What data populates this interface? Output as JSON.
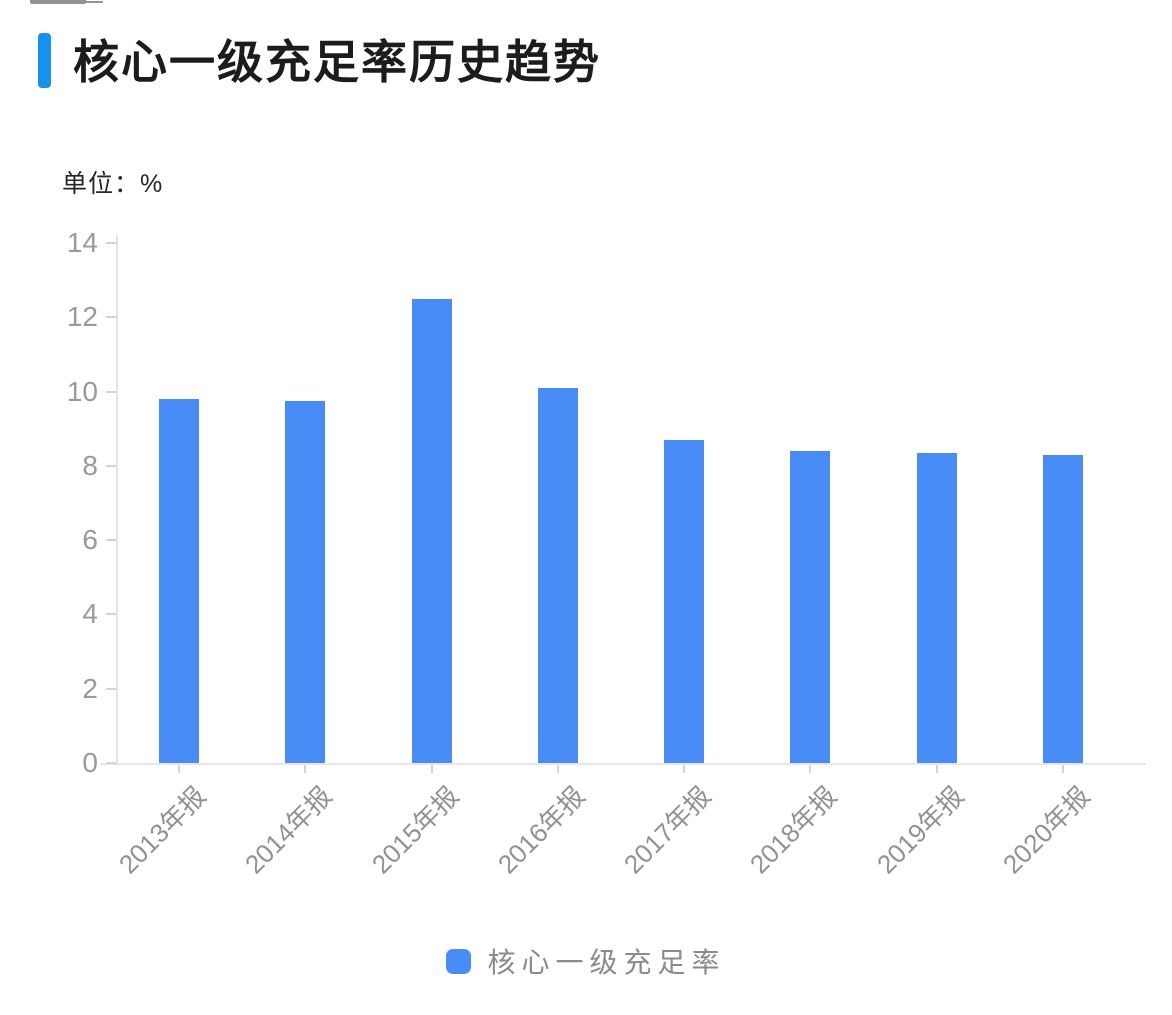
{
  "header": {
    "title": "核心一级充足率历史趋势"
  },
  "chart": {
    "unit_label": "单位：%"
  },
  "chart_data": {
    "type": "bar",
    "title": "核心一级充足率历史趋势",
    "unit": "%",
    "categories": [
      "2013年报",
      "2014年报",
      "2015年报",
      "2016年报",
      "2017年报",
      "2018年报",
      "2019年报",
      "2020年报"
    ],
    "series": [
      {
        "name": "核心一级充足率",
        "values": [
          9.8,
          9.75,
          12.5,
          10.1,
          8.7,
          8.4,
          8.35,
          8.3
        ]
      }
    ],
    "xlabel": "",
    "ylabel": "单位：%",
    "ylim": [
      0,
      14
    ],
    "yticks": [
      0,
      2,
      4,
      6,
      8,
      10,
      12,
      14
    ],
    "grid": false,
    "legend_position": "bottom",
    "x_label_rotation": 45
  },
  "legend": {
    "items": [
      {
        "label": "核心一级充足率",
        "color": "#4A8CF5"
      }
    ]
  },
  "colors": {
    "accent": "#1790F0",
    "bar": "#4A8CF5",
    "title_text": "#1c1c1c",
    "axis_label": "#9a9a9a",
    "axis_line": "#e4e4e4",
    "legend_text": "#8b8b8b"
  }
}
